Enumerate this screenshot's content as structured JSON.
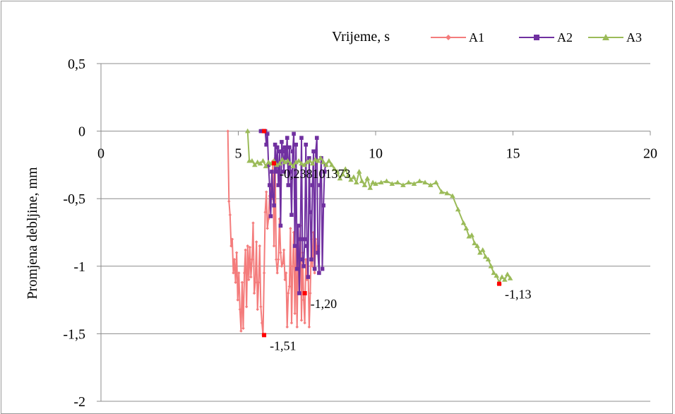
{
  "chart_data": {
    "type": "line",
    "title": "Vrijeme, s",
    "xlabel": "Vrijeme, s",
    "ylabel": "Promjena debljine, mm",
    "xlim": [
      0,
      20
    ],
    "ylim": [
      -2,
      0.5
    ],
    "x_ticks": [
      0,
      5,
      10,
      15,
      20
    ],
    "y_ticks": [
      0.5,
      0,
      -0.5,
      -1,
      -1.5,
      -2
    ],
    "x_tick_labels": [
      "0",
      "5",
      "10",
      "15",
      "20"
    ],
    "y_tick_labels": [
      "0,5",
      "0",
      "-0,5",
      "-1",
      "-1,5",
      "-2"
    ],
    "grid": "horizontal",
    "legend_position": "top-right",
    "series": [
      {
        "name": "A1",
        "color": "#f47c7c",
        "marker": "diamond",
        "x": [
          4.62,
          4.66,
          4.7,
          4.74,
          4.78,
          4.82,
          4.86,
          4.9,
          4.94,
          4.98,
          5.02,
          5.06,
          5.1,
          5.14,
          5.18,
          5.22,
          5.26,
          5.3,
          5.34,
          5.38,
          5.42,
          5.46,
          5.5,
          5.54,
          5.58,
          5.62,
          5.66,
          5.7,
          5.74,
          5.78,
          5.82,
          5.86,
          5.9,
          5.94,
          5.98,
          6.02,
          6.06,
          6.1,
          6.14,
          6.18,
          6.22,
          6.26,
          6.3,
          6.34,
          6.38,
          6.42,
          6.46,
          6.5,
          6.54,
          6.58,
          6.62,
          6.66,
          6.7,
          6.74,
          6.78,
          6.82,
          6.86,
          6.9,
          6.94,
          6.98,
          7.02,
          7.06,
          7.1,
          7.14,
          7.18,
          7.22,
          7.26,
          7.3,
          7.34,
          7.38,
          7.42,
          7.46,
          7.5,
          7.54,
          7.58,
          7.62,
          7.66,
          7.7,
          7.74,
          7.78,
          7.82,
          7.86,
          7.9
        ],
        "y": [
          0.0,
          -0.52,
          -0.62,
          -0.85,
          -0.8,
          -1.05,
          -0.95,
          -1.12,
          -0.9,
          -1.25,
          -1.05,
          -1.32,
          -1.48,
          -1.12,
          -1.46,
          -1.05,
          -0.88,
          -1.3,
          -0.85,
          -1.1,
          -0.86,
          -1.08,
          -0.95,
          -0.68,
          -1.2,
          -1.12,
          -0.82,
          -1.32,
          -1.12,
          -0.85,
          -1.3,
          -1.42,
          -1.51,
          -1.05,
          -0.6,
          -0.45,
          -0.72,
          -0.65,
          -0.48,
          -0.4,
          -0.5,
          -0.22,
          -0.85,
          -0.2,
          -0.95,
          -1.05,
          -0.95,
          -0.65,
          -0.9,
          -1.0,
          -0.98,
          -0.88,
          -1.1,
          -1.05,
          -1.45,
          -1.2,
          -1.15,
          -0.72,
          -1.42,
          -1.0,
          -0.75,
          -1.35,
          -0.85,
          -1.45,
          -0.9,
          -1.0,
          -0.7,
          -1.4,
          -0.9,
          -1.25,
          -1.42,
          -0.95,
          -1.1,
          -1.0,
          -1.45,
          -1.2,
          -0.8,
          -1.0,
          -0.75,
          -1.05,
          -0.8,
          -0.9,
          -0.85
        ]
      },
      {
        "name": "A2",
        "color": "#7030a0",
        "marker": "square",
        "x": [
          5.82,
          5.86,
          5.9,
          5.94,
          5.98,
          6.02,
          6.06,
          6.1,
          6.14,
          6.18,
          6.22,
          6.26,
          6.3,
          6.34,
          6.38,
          6.42,
          6.46,
          6.5,
          6.54,
          6.58,
          6.62,
          6.66,
          6.7,
          6.74,
          6.78,
          6.82,
          6.86,
          6.9,
          6.94,
          6.98,
          7.02,
          7.06,
          7.1,
          7.14,
          7.18,
          7.22,
          7.26,
          7.3,
          7.34,
          7.38,
          7.42,
          7.46,
          7.5,
          7.54,
          7.58,
          7.62,
          7.66,
          7.7,
          7.74,
          7.78,
          7.82,
          7.86,
          7.9,
          7.94,
          7.98,
          8.02,
          8.06,
          8.1,
          8.14,
          8.18
        ],
        "y": [
          0.0,
          0.0,
          0.0,
          0.0,
          0.0,
          -0.1,
          -0.02,
          -0.25,
          -0.4,
          -0.63,
          -0.3,
          -0.48,
          -0.55,
          -0.1,
          -0.3,
          -0.12,
          -0.4,
          -0.15,
          -0.7,
          -0.08,
          -0.15,
          -0.3,
          -0.12,
          -0.2,
          -0.05,
          -0.4,
          -0.12,
          -0.3,
          -0.62,
          -0.15,
          -0.02,
          -0.85,
          -0.1,
          -1.02,
          -0.7,
          -1.2,
          -0.8,
          -0.05,
          -0.95,
          -1.0,
          -0.8,
          -0.1,
          -0.85,
          -1.08,
          -0.2,
          -0.6,
          -0.95,
          -0.4,
          -0.15,
          -1.02,
          -0.15,
          -0.05,
          -0.9,
          -1.05,
          -0.4,
          -0.2,
          -1.02,
          -0.55,
          -0.3,
          -0.25
        ],
        "annotations": [
          {
            "x": 7.42,
            "y": -1.2,
            "label": "-1,20"
          }
        ]
      },
      {
        "name": "A3",
        "color": "#9bbb59",
        "marker": "triangle",
        "x": [
          5.34,
          5.4,
          5.5,
          5.6,
          5.7,
          5.8,
          5.9,
          6.0,
          6.1,
          6.2,
          6.3,
          6.4,
          6.5,
          6.6,
          6.7,
          6.8,
          6.9,
          7.0,
          7.1,
          7.2,
          7.3,
          7.4,
          7.5,
          7.6,
          7.7,
          7.8,
          7.9,
          8.0,
          8.1,
          8.2,
          8.3,
          8.4,
          8.5,
          8.6,
          8.7,
          8.8,
          8.9,
          9.0,
          9.1,
          9.2,
          9.3,
          9.4,
          9.5,
          9.6,
          9.7,
          9.8,
          9.9,
          10.0,
          10.2,
          10.4,
          10.6,
          10.8,
          11.0,
          11.2,
          11.4,
          11.6,
          11.8,
          12.0,
          12.2,
          12.4,
          12.6,
          12.8,
          13.0,
          13.2,
          13.3,
          13.4,
          13.5,
          13.6,
          13.7,
          13.8,
          13.9,
          14.0,
          14.1,
          14.2,
          14.3,
          14.4,
          14.5,
          14.6,
          14.7,
          14.8,
          14.9
        ],
        "y": [
          0.0,
          -0.22,
          -0.22,
          -0.25,
          -0.23,
          -0.24,
          -0.22,
          -0.26,
          -0.23,
          -0.24,
          -0.22,
          -0.25,
          -0.24,
          -0.21,
          -0.23,
          -0.22,
          -0.24,
          -0.26,
          -0.23,
          -0.22,
          -0.24,
          -0.25,
          -0.23,
          -0.22,
          -0.24,
          -0.21,
          -0.22,
          -0.2,
          -0.23,
          -0.25,
          -0.22,
          -0.25,
          -0.28,
          -0.3,
          -0.35,
          -0.32,
          -0.28,
          -0.33,
          -0.36,
          -0.34,
          -0.38,
          -0.3,
          -0.37,
          -0.4,
          -0.35,
          -0.42,
          -0.38,
          -0.39,
          -0.38,
          -0.37,
          -0.39,
          -0.38,
          -0.4,
          -0.38,
          -0.39,
          -0.37,
          -0.38,
          -0.4,
          -0.38,
          -0.45,
          -0.46,
          -0.48,
          -0.58,
          -0.68,
          -0.72,
          -0.78,
          -0.77,
          -0.83,
          -0.85,
          -0.9,
          -0.88,
          -0.93,
          -0.95,
          -1.0,
          -1.05,
          -1.07,
          -1.12,
          -1.08,
          -1.1,
          -1.06,
          -1.09
        ],
        "annotations": [
          {
            "x": 6.3,
            "y": -0.2381,
            "label": "-0,238101373"
          },
          {
            "x": 14.5,
            "y": -1.13,
            "label": "-1,13"
          }
        ]
      }
    ],
    "extra_annotations": [
      {
        "series": "A1",
        "x": 5.94,
        "y": -1.51,
        "label": "-1,51"
      }
    ]
  }
}
